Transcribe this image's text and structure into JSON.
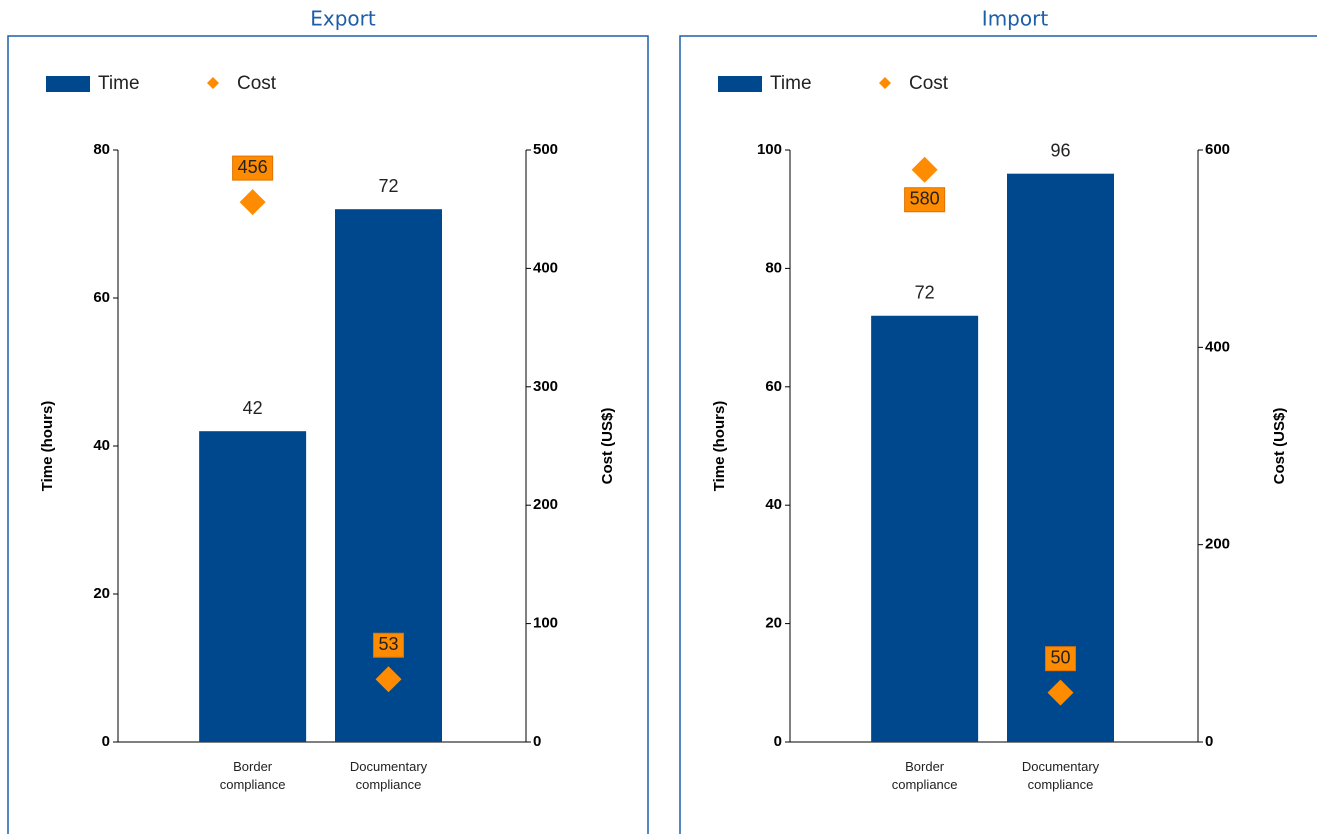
{
  "chart_data": [
    {
      "type": "bar",
      "title": "Export",
      "categories": [
        "Border compliance",
        "Documentary compliance"
      ],
      "series": [
        {
          "name": "Time",
          "color": "#00488d",
          "values": [
            42,
            72
          ]
        },
        {
          "name": "Cost",
          "color": "#ff8c00",
          "values": [
            456,
            53
          ],
          "axis": "y2",
          "marker": "diamond"
        }
      ],
      "ylabel": "Time (hours)",
      "y2label": "Cost (US$)",
      "ylim": [
        0,
        80
      ],
      "yticks": [
        0,
        20,
        40,
        60,
        80
      ],
      "y2lim": [
        0,
        500
      ],
      "y2ticks": [
        0,
        100,
        200,
        300,
        400,
        500
      ],
      "legend": "top-left"
    },
    {
      "type": "bar",
      "title": "Import",
      "categories": [
        "Border compliance",
        "Documentary compliance"
      ],
      "series": [
        {
          "name": "Time",
          "color": "#00488d",
          "values": [
            72,
            96
          ]
        },
        {
          "name": "Cost",
          "color": "#ff8c00",
          "values": [
            580,
            50
          ],
          "axis": "y2",
          "marker": "diamond"
        }
      ],
      "ylabel": "Time (hours)",
      "y2label": "Cost (US$)",
      "ylim": [
        0,
        100
      ],
      "yticks": [
        0,
        20,
        40,
        60,
        80,
        100
      ],
      "y2lim": [
        0,
        600
      ],
      "y2ticks": [
        0,
        200,
        400,
        600
      ],
      "legend": "top-left"
    }
  ]
}
